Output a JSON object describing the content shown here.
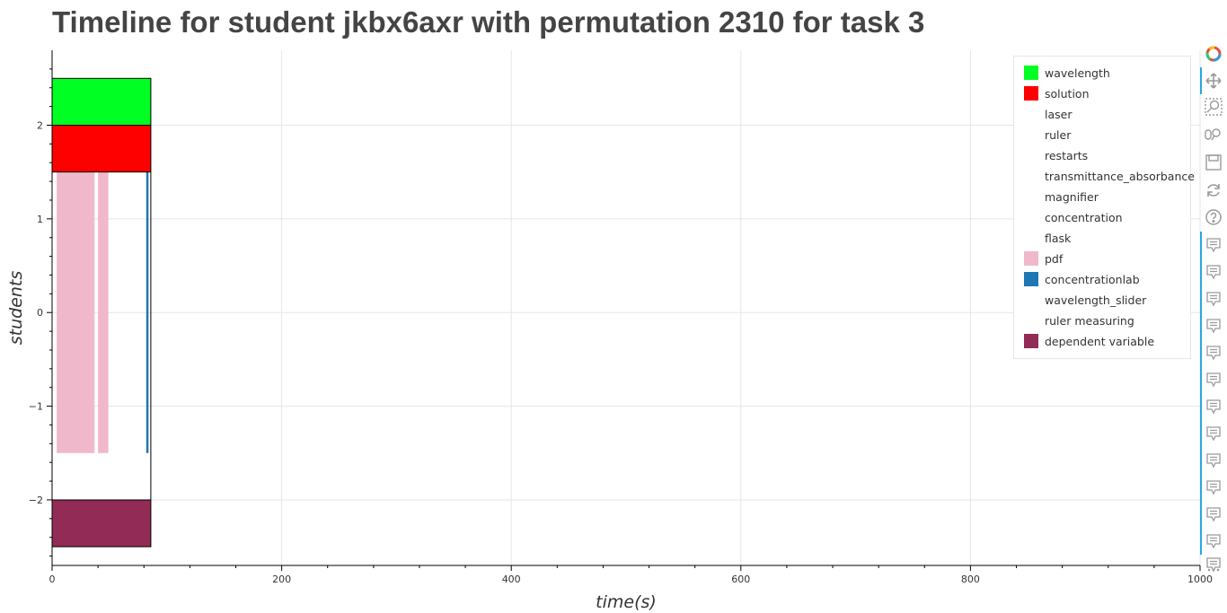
{
  "title": "Timeline for student jkbx6axr with permutation 2310 for task 3",
  "chart_data": {
    "type": "bar",
    "xlabel": "time(s)",
    "ylabel": "students",
    "xlim": [
      0,
      1000
    ],
    "ylim": [
      -2.7,
      2.8
    ],
    "x_ticks": [
      0,
      200,
      400,
      600,
      800,
      1000
    ],
    "y_ticks": [
      -2,
      -1,
      0,
      1,
      2
    ],
    "grid": true,
    "legend_placement": "top-right",
    "series": [
      {
        "name": "wavelength",
        "color": "#00ff22",
        "segments": [
          {
            "start": 0,
            "end": 86,
            "y0": 2.0,
            "y1": 2.5
          }
        ]
      },
      {
        "name": "solution",
        "color": "#ff0000",
        "segments": [
          {
            "start": 0,
            "end": 86,
            "y0": 1.5,
            "y1": 2.0
          }
        ]
      },
      {
        "name": "laser",
        "color": "#ffffff",
        "segments": []
      },
      {
        "name": "ruler",
        "color": "#ffffff",
        "segments": []
      },
      {
        "name": "restarts",
        "color": "#ffffff",
        "segments": []
      },
      {
        "name": "transmittance_absorbance",
        "color": "#ffffff",
        "segments": []
      },
      {
        "name": "magnifier",
        "color": "#ffffff",
        "segments": []
      },
      {
        "name": "concentration",
        "color": "#ffffff",
        "segments": []
      },
      {
        "name": "flask",
        "color": "#ffffff",
        "segments": []
      },
      {
        "name": "pdf",
        "color": "#f0b8cb",
        "segments": [
          {
            "start": 4,
            "end": 37,
            "y0": -1.5,
            "y1": 1.5
          },
          {
            "start": 40,
            "end": 49,
            "y0": -1.5,
            "y1": 1.5
          }
        ]
      },
      {
        "name": "concentrationlab",
        "color": "#1f77b4",
        "segments": [
          {
            "start": 82,
            "end": 84,
            "y0": -1.5,
            "y1": 1.5
          }
        ]
      },
      {
        "name": "wavelength_slider",
        "color": "#ffffff",
        "segments": []
      },
      {
        "name": "ruler measuring",
        "color": "#ffffff",
        "segments": []
      },
      {
        "name": "dependent variable",
        "color": "#922b55",
        "segments": [
          {
            "start": 0,
            "end": 86,
            "y0": -2.5,
            "y1": -2.0
          }
        ]
      }
    ],
    "outline": {
      "start": 0,
      "end": 86,
      "y0": -2.5,
      "y1": 2.5
    }
  },
  "toolbar": {
    "tools": [
      {
        "name": "bokeh-logo-icon",
        "active": false
      },
      {
        "name": "pan-icon",
        "active": true
      },
      {
        "name": "box-zoom-icon",
        "active": false
      },
      {
        "name": "wheel-zoom-icon",
        "active": false
      },
      {
        "name": "save-icon",
        "active": false
      },
      {
        "name": "reset-icon",
        "active": false
      },
      {
        "name": "help-icon",
        "active": false
      },
      {
        "name": "hover-icon",
        "active": true
      },
      {
        "name": "hover-icon",
        "active": true
      },
      {
        "name": "hover-icon",
        "active": true
      },
      {
        "name": "hover-icon",
        "active": true
      },
      {
        "name": "hover-icon",
        "active": true
      },
      {
        "name": "hover-icon",
        "active": true
      },
      {
        "name": "hover-icon",
        "active": true
      },
      {
        "name": "hover-icon",
        "active": true
      },
      {
        "name": "hover-icon",
        "active": true
      },
      {
        "name": "hover-icon",
        "active": true
      },
      {
        "name": "hover-icon",
        "active": true
      },
      {
        "name": "hover-icon",
        "active": true
      },
      {
        "name": "hover-icon",
        "active": true
      },
      {
        "name": "more-icon",
        "active": false
      }
    ]
  }
}
